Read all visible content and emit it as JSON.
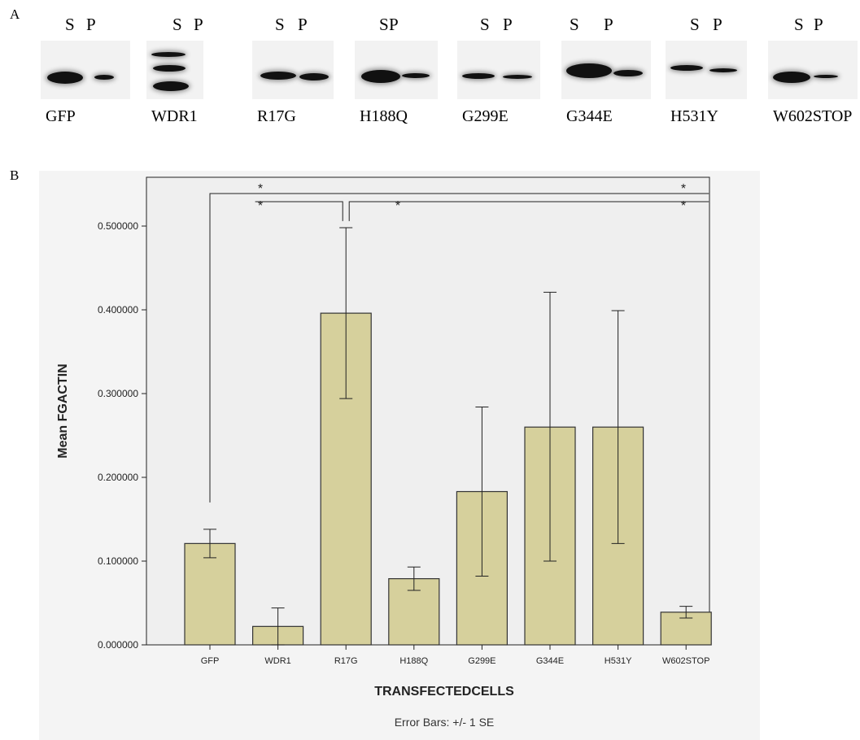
{
  "panel_a": {
    "letter": "A",
    "lanes": [
      {
        "name": "GFP",
        "s_label": "S",
        "p_label": "P"
      },
      {
        "name": "WDR1",
        "s_label": "S",
        "p_label": "P"
      },
      {
        "name": "R17G",
        "s_label": "S",
        "p_label": "P"
      },
      {
        "name": "H188Q",
        "s_label": "S",
        "p_label": "P"
      },
      {
        "name": "G299E",
        "s_label": "S",
        "p_label": "P"
      },
      {
        "name": "G344E",
        "s_label": "S",
        "p_label": "P"
      },
      {
        "name": "H531Y",
        "s_label": "S",
        "p_label": "P"
      },
      {
        "name": "W602STOP",
        "s_label": "S",
        "p_label": "P"
      }
    ]
  },
  "panel_b": {
    "letter": "B"
  },
  "chart_data": {
    "type": "bar",
    "categories": [
      "GFP",
      "WDR1",
      "R17G",
      "H188Q",
      "G299E",
      "G344E",
      "H531Y",
      "W602STOP"
    ],
    "values": [
      0.121,
      0.022,
      0.396,
      0.079,
      0.183,
      0.26,
      0.26,
      0.039
    ],
    "error_low": [
      0.104,
      0.0,
      0.294,
      0.065,
      0.082,
      0.1,
      0.121,
      0.032
    ],
    "error_high": [
      0.138,
      0.044,
      0.498,
      0.093,
      0.284,
      0.421,
      0.399,
      0.046
    ],
    "xlabel": "TRANSFECTEDCELLS",
    "ylabel": "Mean FGACTIN",
    "ylim": [
      0,
      0.5
    ],
    "yticks": [
      0,
      0.1,
      0.2,
      0.3,
      0.4,
      0.5
    ],
    "ytick_labels": [
      "0.000000",
      "0.100000",
      "0.200000",
      "0.300000",
      "0.400000",
      "0.500000"
    ],
    "footnote": "Error Bars: +/- 1 SE",
    "bar_color": "#d6d09c",
    "bar_edge_color": "#333333",
    "plot_background": "#efefef",
    "outer_background": "#f4f4f4",
    "grid": false,
    "significance": [
      {
        "from": "GFP",
        "to": "W602STOP",
        "label": "*"
      },
      {
        "from": "WDR1",
        "to": "R17G",
        "label": "*"
      },
      {
        "from": "R17G",
        "to": "W602STOP",
        "label": "*"
      }
    ]
  }
}
